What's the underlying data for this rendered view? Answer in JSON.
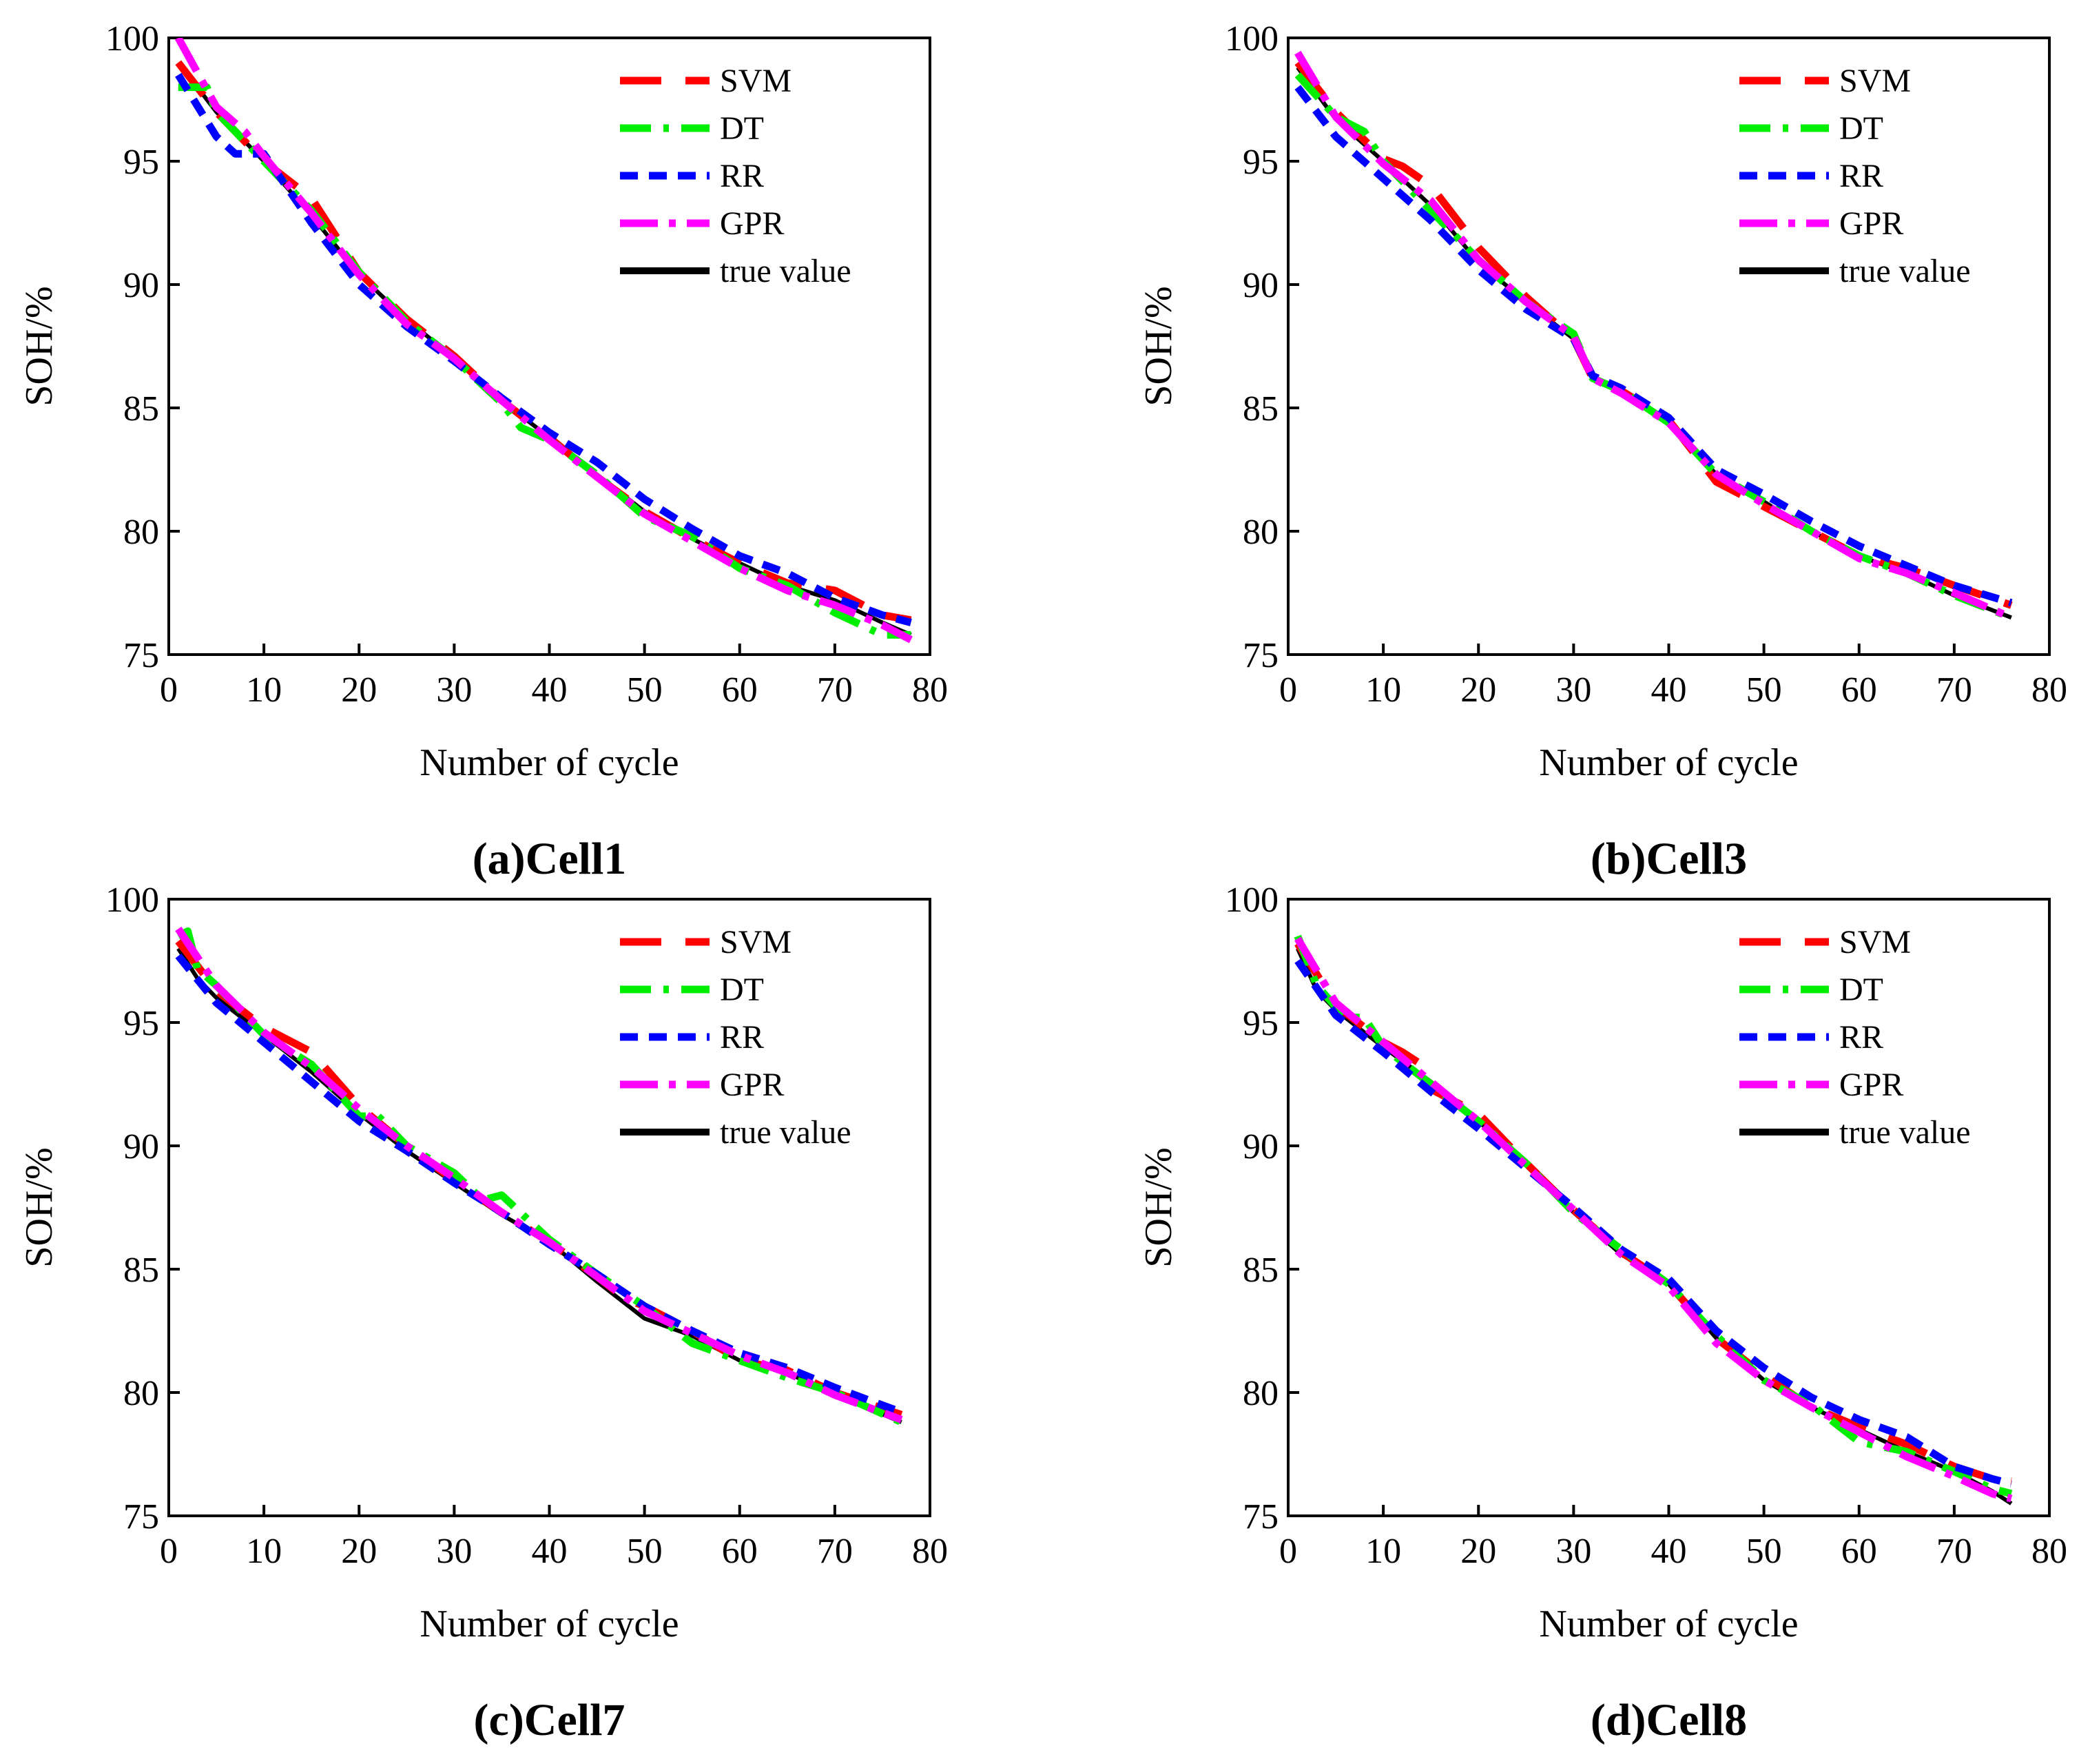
{
  "legend_entries": [
    "SVM",
    "DT",
    "RR",
    "GPR",
    "true value"
  ],
  "series_colors": {
    "SVM": "#ff0000",
    "DT": "#00ee00",
    "RR": "#0000ff",
    "GPR": "#ff00ff",
    "true value": "#000000"
  },
  "chart_data": [
    {
      "type": "line",
      "title": "(a)Cell1",
      "xlabel": "Number of cycle",
      "ylabel": "SOH/%",
      "xlim": [
        0,
        80
      ],
      "ylim": [
        75,
        100
      ],
      "xticks": [
        0,
        10,
        20,
        30,
        40,
        50,
        60,
        70,
        80
      ],
      "yticks": [
        75,
        80,
        85,
        90,
        95,
        100
      ],
      "series": [
        {
          "name": "true value",
          "x": [
            1,
            5,
            10,
            15,
            20,
            25,
            30,
            35,
            40,
            45,
            50,
            55,
            60,
            65,
            70,
            75,
            78
          ],
          "values": [
            99.0,
            97.0,
            95.0,
            92.8,
            90.4,
            88.6,
            87.0,
            85.3,
            83.8,
            82.3,
            80.8,
            79.7,
            78.7,
            77.8,
            77.2,
            76.3,
            75.8
          ]
        },
        {
          "name": "SVM",
          "x": [
            1,
            5,
            10,
            15,
            20,
            25,
            30,
            35,
            40,
            45,
            50,
            55,
            60,
            65,
            70,
            75,
            78
          ],
          "values": [
            99.0,
            97.0,
            95.0,
            93.5,
            90.5,
            88.6,
            87.1,
            85.3,
            83.8,
            82.2,
            80.8,
            79.7,
            78.7,
            77.9,
            77.6,
            76.6,
            76.4
          ]
        },
        {
          "name": "DT",
          "x": [
            1,
            4,
            5,
            10,
            15,
            20,
            25,
            30,
            35,
            37,
            40,
            45,
            50,
            55,
            60,
            65,
            70,
            75,
            78
          ],
          "values": [
            98.0,
            98.0,
            97.0,
            95.0,
            93.0,
            90.5,
            88.5,
            87.0,
            85.2,
            84.2,
            83.7,
            82.3,
            80.6,
            79.8,
            78.5,
            77.8,
            76.7,
            75.8,
            75.8
          ]
        },
        {
          "name": "RR",
          "x": [
            1,
            5,
            7,
            10,
            15,
            20,
            25,
            30,
            35,
            40,
            45,
            50,
            55,
            60,
            65,
            70,
            75,
            78
          ],
          "values": [
            98.5,
            96.0,
            95.3,
            95.3,
            92.5,
            90.0,
            88.3,
            86.9,
            85.4,
            84.0,
            82.8,
            81.3,
            80.1,
            79.0,
            78.3,
            77.3,
            76.6,
            76.3
          ]
        },
        {
          "name": "GPR",
          "x": [
            1,
            5,
            8,
            10,
            15,
            20,
            25,
            30,
            35,
            40,
            45,
            50,
            55,
            60,
            65,
            70,
            75,
            78
          ],
          "values": [
            100.0,
            97.2,
            96.2,
            95.2,
            92.9,
            90.4,
            88.4,
            87.0,
            85.3,
            83.7,
            82.2,
            80.7,
            79.6,
            78.5,
            77.6,
            77.0,
            76.2,
            75.6
          ]
        }
      ]
    },
    {
      "type": "line",
      "title": "(b)Cell3",
      "xlabel": "Number of cycle",
      "ylabel": "SOH/%",
      "xlim": [
        0,
        80
      ],
      "ylim": [
        75,
        100
      ],
      "xticks": [
        0,
        10,
        20,
        30,
        40,
        50,
        60,
        70,
        80
      ],
      "yticks": [
        75,
        80,
        85,
        90,
        95,
        100
      ],
      "series": [
        {
          "name": "true value",
          "x": [
            1,
            5,
            10,
            15,
            20,
            25,
            30,
            32,
            35,
            40,
            45,
            50,
            55,
            60,
            65,
            70,
            76
          ],
          "values": [
            98.8,
            96.7,
            95.0,
            93.2,
            90.9,
            89.3,
            87.8,
            86.2,
            85.7,
            84.5,
            82.3,
            81.2,
            80.0,
            79.0,
            78.3,
            77.4,
            76.5
          ]
        },
        {
          "name": "SVM",
          "x": [
            1,
            5,
            10,
            12,
            15,
            20,
            25,
            30,
            32,
            35,
            40,
            45,
            50,
            55,
            60,
            65,
            70,
            76
          ],
          "values": [
            99.0,
            97.0,
            95.1,
            94.8,
            94.0,
            91.5,
            89.5,
            87.8,
            86.2,
            85.7,
            84.5,
            82.0,
            81.0,
            80.0,
            79.0,
            78.5,
            77.8,
            77.0
          ]
        },
        {
          "name": "DT",
          "x": [
            1,
            5,
            8,
            10,
            15,
            20,
            25,
            30,
            32,
            35,
            40,
            45,
            50,
            55,
            60,
            65,
            70,
            76
          ],
          "values": [
            98.5,
            96.8,
            96.2,
            95.0,
            93.0,
            91.0,
            89.3,
            88.0,
            86.2,
            85.7,
            84.4,
            82.3,
            81.2,
            80.0,
            79.0,
            78.3,
            77.4,
            76.5
          ]
        },
        {
          "name": "RR",
          "x": [
            1,
            5,
            10,
            15,
            20,
            25,
            30,
            32,
            35,
            40,
            45,
            50,
            55,
            60,
            65,
            70,
            76
          ],
          "values": [
            98.0,
            96.0,
            94.3,
            92.6,
            90.6,
            89.0,
            87.8,
            86.3,
            85.8,
            84.6,
            82.5,
            81.5,
            80.4,
            79.4,
            78.6,
            77.8,
            77.1
          ]
        },
        {
          "name": "GPR",
          "x": [
            1,
            5,
            10,
            15,
            20,
            25,
            30,
            32,
            35,
            40,
            45,
            50,
            55,
            60,
            65,
            70,
            76
          ],
          "values": [
            99.4,
            96.8,
            94.9,
            93.4,
            91.0,
            89.3,
            87.9,
            86.2,
            85.6,
            84.4,
            82.3,
            81.1,
            80.0,
            78.9,
            78.3,
            77.5,
            76.5
          ]
        }
      ]
    },
    {
      "type": "line",
      "title": "(c)Cell7",
      "xlabel": "Number of cycle",
      "ylabel": "SOH/%",
      "xlim": [
        0,
        80
      ],
      "ylim": [
        75,
        100
      ],
      "xticks": [
        0,
        10,
        20,
        30,
        40,
        50,
        60,
        70,
        80
      ],
      "yticks": [
        75,
        80,
        85,
        90,
        95,
        100
      ],
      "series": [
        {
          "name": "true value",
          "x": [
            1,
            3,
            5,
            10,
            15,
            20,
            25,
            30,
            35,
            40,
            45,
            50,
            55,
            60,
            65,
            70,
            77
          ],
          "values": [
            98.0,
            96.8,
            96.0,
            94.5,
            93.0,
            91.3,
            89.8,
            88.5,
            87.2,
            86.1,
            84.5,
            83.0,
            82.3,
            81.3,
            80.8,
            79.9,
            78.8
          ]
        },
        {
          "name": "SVM",
          "x": [
            1,
            5,
            10,
            15,
            20,
            25,
            30,
            35,
            40,
            45,
            48,
            50,
            55,
            60,
            65,
            70,
            77
          ],
          "values": [
            98.3,
            96.3,
            94.8,
            93.8,
            91.6,
            90.0,
            88.6,
            87.3,
            86.1,
            84.7,
            83.8,
            83.5,
            82.5,
            81.3,
            80.9,
            80.0,
            79.1
          ]
        },
        {
          "name": "DT",
          "x": [
            1,
            2,
            3,
            5,
            10,
            15,
            20,
            22,
            25,
            30,
            33,
            35,
            40,
            45,
            50,
            55,
            60,
            65,
            70,
            77
          ],
          "values": [
            98.5,
            98.7,
            97.2,
            96.5,
            94.5,
            93.3,
            91.2,
            91.2,
            90.0,
            88.9,
            87.8,
            88.0,
            86.2,
            84.8,
            83.5,
            82.0,
            81.3,
            80.6,
            80.0,
            78.8
          ]
        },
        {
          "name": "RR",
          "x": [
            1,
            5,
            10,
            15,
            20,
            25,
            30,
            35,
            40,
            45,
            50,
            55,
            60,
            65,
            70,
            77
          ],
          "values": [
            97.7,
            95.8,
            94.2,
            92.6,
            91.0,
            89.8,
            88.5,
            87.3,
            86.0,
            84.8,
            83.5,
            82.5,
            81.6,
            81.0,
            80.2,
            79.2
          ]
        },
        {
          "name": "GPR",
          "x": [
            1,
            5,
            10,
            15,
            20,
            25,
            30,
            35,
            40,
            45,
            50,
            55,
            60,
            65,
            70,
            77
          ],
          "values": [
            98.8,
            96.5,
            94.6,
            93.2,
            91.5,
            90.0,
            88.7,
            87.3,
            86.1,
            84.7,
            83.3,
            82.4,
            81.5,
            80.8,
            79.9,
            78.9
          ]
        }
      ]
    },
    {
      "type": "line",
      "title": "(d)Cell8",
      "xlabel": "Number of cycle",
      "ylabel": "SOH/%",
      "xlim": [
        0,
        80
      ],
      "ylim": [
        75,
        100
      ],
      "xticks": [
        0,
        10,
        20,
        30,
        40,
        50,
        60,
        70,
        80
      ],
      "yticks": [
        75,
        80,
        85,
        90,
        95,
        100
      ],
      "series": [
        {
          "name": "true value",
          "x": [
            1,
            3,
            5,
            10,
            15,
            20,
            25,
            30,
            35,
            40,
            45,
            50,
            55,
            60,
            65,
            70,
            74,
            76
          ],
          "values": [
            98.0,
            96.3,
            95.5,
            94.0,
            92.6,
            91.0,
            89.2,
            87.3,
            85.6,
            84.4,
            82.2,
            80.5,
            79.4,
            78.5,
            77.6,
            76.8,
            76.0,
            75.5
          ]
        },
        {
          "name": "SVM",
          "x": [
            1,
            5,
            10,
            12,
            14,
            15,
            20,
            25,
            30,
            35,
            40,
            45,
            50,
            55,
            60,
            65,
            70,
            74,
            76
          ],
          "values": [
            98.2,
            95.7,
            94.2,
            93.8,
            93.3,
            92.3,
            91.3,
            89.3,
            87.4,
            85.7,
            84.4,
            82.2,
            80.7,
            79.4,
            78.6,
            77.9,
            77.0,
            76.5,
            76.4
          ]
        },
        {
          "name": "DT",
          "x": [
            1,
            3,
            6,
            8,
            10,
            15,
            20,
            25,
            30,
            35,
            40,
            45,
            50,
            55,
            60,
            65,
            70,
            74,
            76
          ],
          "values": [
            98.5,
            96.5,
            95.2,
            95.2,
            94.0,
            92.5,
            91.0,
            89.3,
            87.3,
            85.8,
            84.4,
            82.3,
            80.5,
            79.5,
            78.0,
            77.6,
            76.8,
            76.1,
            75.9
          ]
        },
        {
          "name": "RR",
          "x": [
            1,
            5,
            10,
            15,
            20,
            25,
            30,
            35,
            40,
            45,
            50,
            55,
            60,
            65,
            70,
            74,
            76
          ],
          "values": [
            97.5,
            95.3,
            93.8,
            92.2,
            90.7,
            89.1,
            87.5,
            85.8,
            84.6,
            82.5,
            81.0,
            79.8,
            78.9,
            78.2,
            77.0,
            76.5,
            76.3
          ]
        },
        {
          "name": "GPR",
          "x": [
            1,
            5,
            10,
            15,
            20,
            25,
            30,
            35,
            40,
            45,
            50,
            55,
            60,
            65,
            70,
            74,
            76
          ],
          "values": [
            98.4,
            95.8,
            94.2,
            92.6,
            91.0,
            89.2,
            87.4,
            85.6,
            84.3,
            82.0,
            80.5,
            79.4,
            78.4,
            77.4,
            76.6,
            75.9,
            75.7
          ]
        }
      ]
    }
  ]
}
